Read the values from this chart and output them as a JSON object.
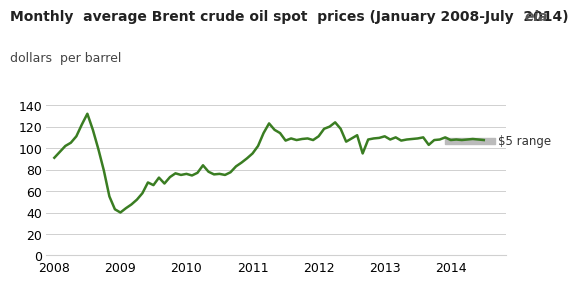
{
  "title": "Monthly  average Brent crude oil spot  prices (January 2008-July  2014)",
  "subtitle": "dollars  per barrel",
  "line_color": "#3a7d22",
  "line_width": 1.8,
  "background_color": "#ffffff",
  "grid_color": "#d0d0d0",
  "ylim": [
    0,
    145
  ],
  "yticks": [
    0,
    20,
    40,
    60,
    80,
    100,
    120,
    140
  ],
  "xlim_start": 2007.88,
  "xlim_end": 2014.83,
  "xtick_labels": [
    "2008",
    "2009",
    "2010",
    "2011",
    "2012",
    "2013",
    "2014"
  ],
  "xtick_positions": [
    2008,
    2009,
    2010,
    2011,
    2012,
    2013,
    2014
  ],
  "shade_color": "#bbbbbb",
  "shade_label": "$5 range",
  "shade_x_start": 2013.92,
  "shade_x_end": 2014.67,
  "shade_y_low": 104.0,
  "shade_y_high": 109.5,
  "prices": [
    91.0,
    96.5,
    102.0,
    105.0,
    111.0,
    122.0,
    132.0,
    117.0,
    99.0,
    79.0,
    55.0,
    43.0,
    40.0,
    44.0,
    47.5,
    52.0,
    58.0,
    68.0,
    65.5,
    72.5,
    67.0,
    73.0,
    76.5,
    75.0,
    76.0,
    74.5,
    77.0,
    84.0,
    78.0,
    75.5,
    76.0,
    75.0,
    77.5,
    83.0,
    86.5,
    90.5,
    95.0,
    102.0,
    114.0,
    123.0,
    117.0,
    114.0,
    107.0,
    109.0,
    107.5,
    108.5,
    109.0,
    107.5,
    111.0,
    118.0,
    120.0,
    124.0,
    118.0,
    106.0,
    109.0,
    112.0,
    95.0,
    108.0,
    109.0,
    109.5,
    111.0,
    108.0,
    110.0,
    107.0,
    108.0,
    108.5,
    109.0,
    110.0,
    103.0,
    107.5,
    108.0,
    110.0,
    107.5,
    108.0,
    107.5,
    108.0,
    108.5,
    108.0,
    107.5
  ],
  "title_fontsize": 10,
  "subtitle_fontsize": 9,
  "tick_fontsize": 9
}
